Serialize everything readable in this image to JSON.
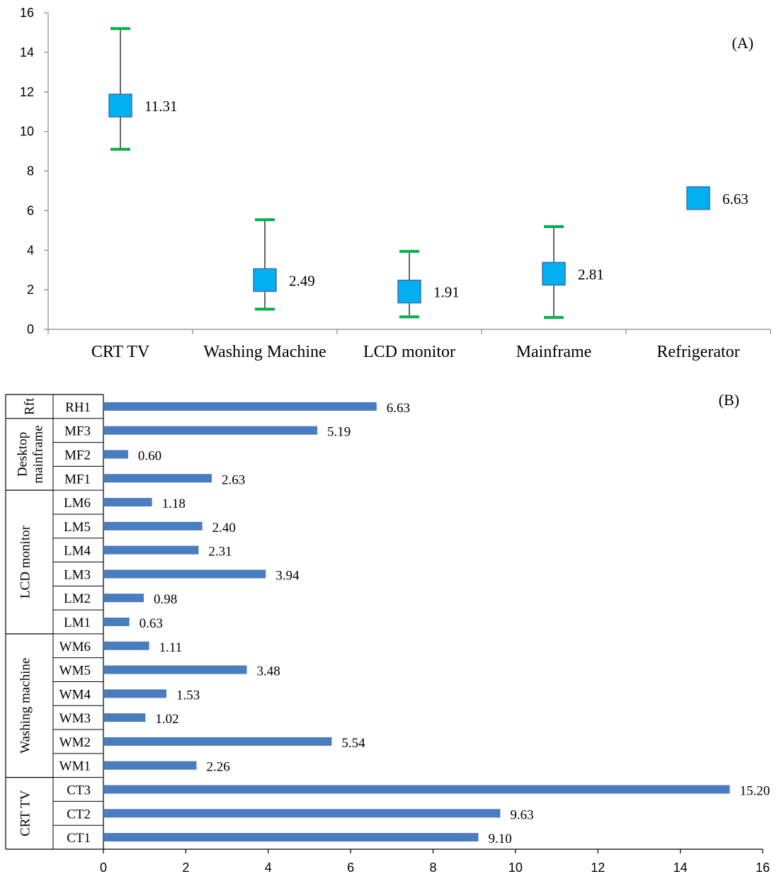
{
  "chart_data": [
    {
      "panel": "(A)",
      "type": "scatter",
      "categories": [
        "CRT TV",
        "Washing Machine",
        "LCD monitor",
        "Mainframe",
        "Refrigerator"
      ],
      "values": [
        11.31,
        2.49,
        1.91,
        2.81,
        6.63
      ],
      "value_labels": [
        "11.31",
        "2.49",
        "1.91",
        "2.81",
        "6.63"
      ],
      "error_bars": [
        {
          "low": 9.1,
          "high": 15.2
        },
        {
          "low": 1.02,
          "high": 5.54
        },
        {
          "low": 0.63,
          "high": 3.94
        },
        {
          "low": 0.6,
          "high": 5.19
        },
        null
      ],
      "ylim": [
        0,
        16
      ],
      "yticks": [
        0,
        2,
        4,
        6,
        8,
        10,
        12,
        14,
        16
      ],
      "grid": false,
      "colors": {
        "marker": "#00b0f0",
        "marker_edge": "#3e6fb0",
        "cap": "#00b050",
        "whisker": "#000000"
      }
    },
    {
      "panel": "(B)",
      "type": "bar",
      "orientation": "horizontal",
      "categories": [
        "RH1",
        "MF3",
        "MF2",
        "MF1",
        "LM6",
        "LM5",
        "LM4",
        "LM3",
        "LM2",
        "LM1",
        "WM6",
        "WM5",
        "WM4",
        "WM3",
        "WM2",
        "WM1",
        "CT3",
        "CT2",
        "CT1"
      ],
      "values": [
        6.63,
        5.19,
        0.6,
        2.63,
        1.18,
        2.4,
        2.31,
        3.94,
        0.98,
        0.63,
        1.11,
        3.48,
        1.53,
        1.02,
        5.54,
        2.26,
        15.2,
        9.63,
        9.1
      ],
      "value_labels": [
        "6.63",
        "5.19",
        "0.60",
        "2.63",
        "1.18",
        "2.40",
        "2.31",
        "3.94",
        "0.98",
        "0.63",
        "1.11",
        "3.48",
        "1.53",
        "1.02",
        "5.54",
        "2.26",
        "15.20",
        "9.63",
        "9.10"
      ],
      "groups": [
        {
          "label": "Rft",
          "count": 1
        },
        {
          "label": "Desktop mainframe",
          "count": 3
        },
        {
          "label": "LCD monitor",
          "count": 6
        },
        {
          "label": "Washing machine",
          "count": 6
        },
        {
          "label": "CRT TV",
          "count": 3
        }
      ],
      "xlim": [
        0,
        16
      ],
      "xticks": [
        0,
        2,
        4,
        6,
        8,
        10,
        12,
        14,
        16
      ],
      "grid": false,
      "colors": {
        "bar": "#4a7dbf"
      }
    }
  ]
}
